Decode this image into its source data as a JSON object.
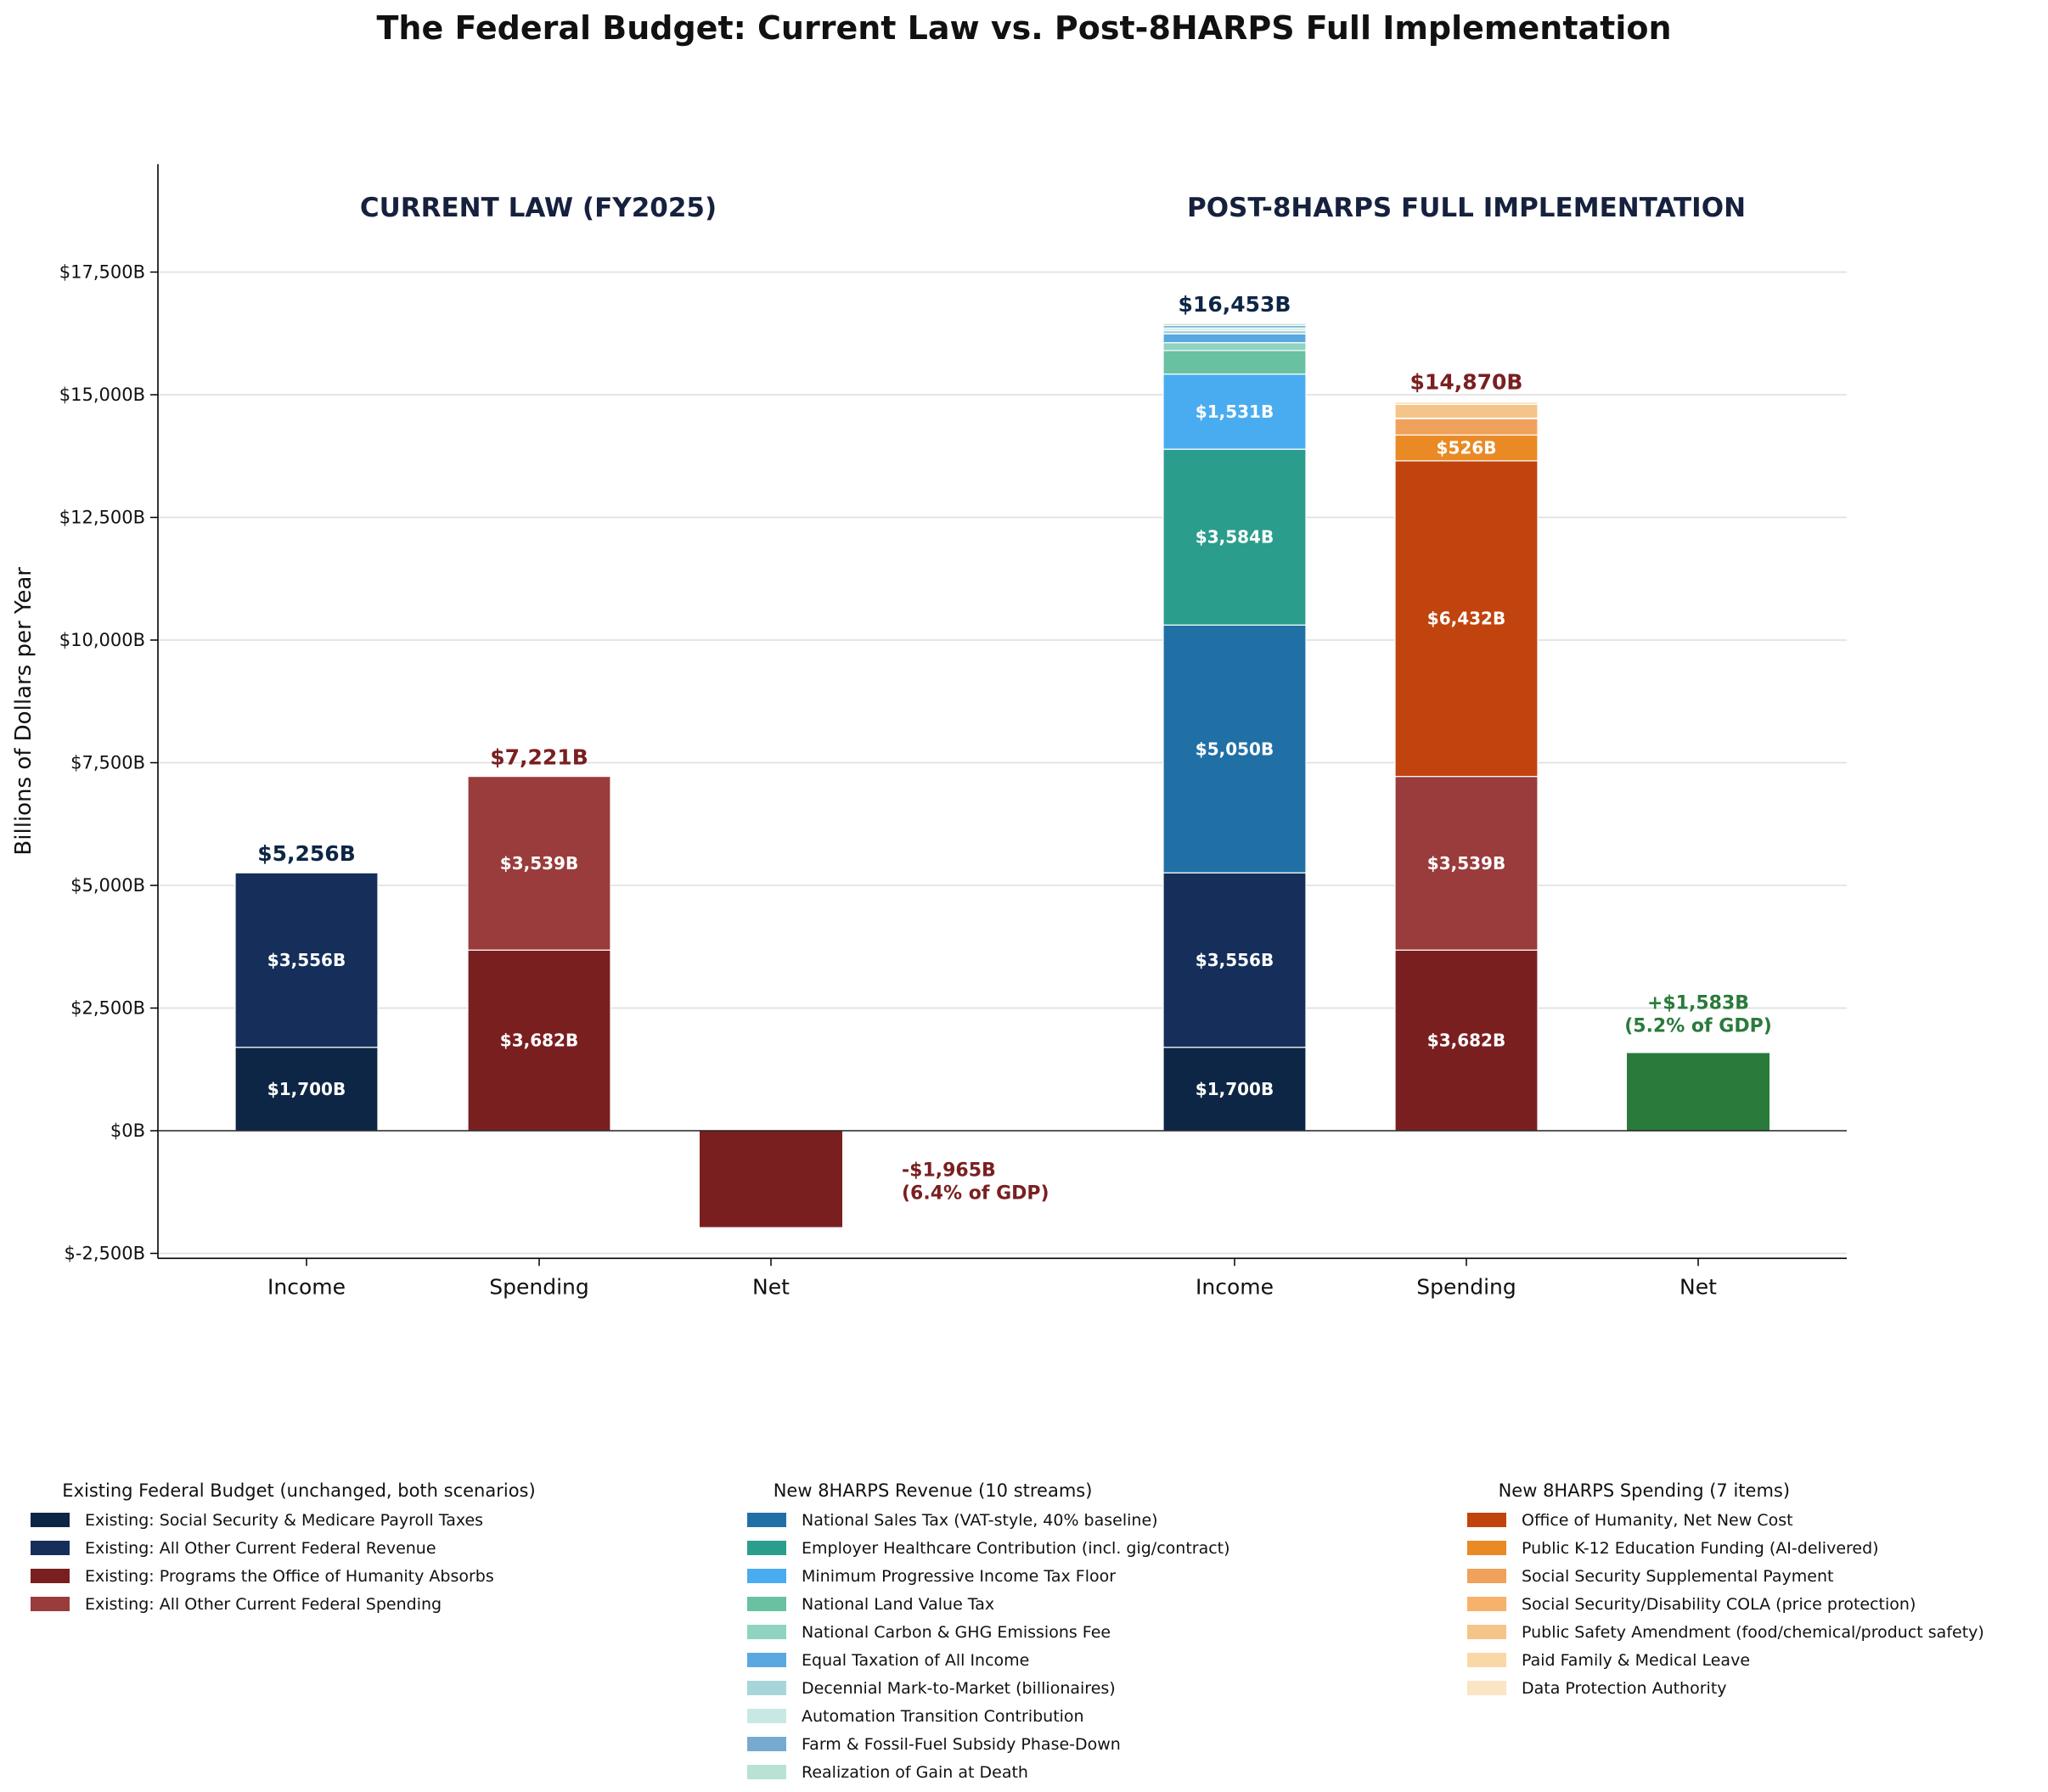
{
  "chart_data": {
    "type": "bar",
    "stacked": true,
    "title": "The Federal Budget: Current Law vs. Post-8HARPS Full Implementation",
    "ylabel": "Billions of Dollars per Year",
    "ylim": [
      -2600,
      19700
    ],
    "yticks": [
      -2500,
      0,
      2500,
      5000,
      7500,
      10000,
      12500,
      15000,
      17500
    ],
    "ytick_labels": [
      "$-2,500B",
      "$0B",
      "$2,500B",
      "$5,000B",
      "$7,500B",
      "$10,000B",
      "$12,500B",
      "$15,000B",
      "$17,500B"
    ],
    "grid": "y",
    "scenarios": [
      {
        "heading": "CURRENT LAW (FY2025)",
        "bars": [
          {
            "category": "Income",
            "total_label": "$5,256B",
            "segments": [
              {
                "series": "Existing: Social Security & Medicare Payroll Taxes",
                "value": 1700,
                "label": "$1,700B"
              },
              {
                "series": "Existing: All Other Current Federal Revenue",
                "value": 3556,
                "label": "$3,556B"
              }
            ]
          },
          {
            "category": "Spending",
            "total_label": "$7,221B",
            "segments": [
              {
                "series": "Existing: Programs the Office of Humanity Absorbs",
                "value": 3682,
                "label": "$3,682B"
              },
              {
                "series": "Existing: All Other Current Federal Spending",
                "value": 3539,
                "label": "$3,539B"
              }
            ]
          },
          {
            "category": "Net",
            "net": true,
            "value": -1965,
            "net_label": [
              "-$1,965B",
              "(6.4% of GDP)"
            ]
          }
        ]
      },
      {
        "heading": "POST-8HARPS FULL IMPLEMENTATION",
        "bars": [
          {
            "category": "Income",
            "total_label": "$16,453B",
            "segments": [
              {
                "series": "Existing: Social Security & Medicare Payroll Taxes",
                "value": 1700,
                "label": "$1,700B"
              },
              {
                "series": "Existing: All Other Current Federal Revenue",
                "value": 3556,
                "label": "$3,556B"
              },
              {
                "series": "National Sales Tax (VAT-style, 40% baseline)",
                "value": 5050,
                "label": "$5,050B"
              },
              {
                "series": "Employer Healthcare Contribution (incl. gig/contract)",
                "value": 3584,
                "label": "$3,584B"
              },
              {
                "series": "Minimum Progressive Income Tax Floor",
                "value": 1531,
                "label": "$1,531B"
              },
              {
                "series": "National Land Value Tax",
                "value": 480,
                "label": ""
              },
              {
                "series": "National Carbon & GHG Emissions Fee",
                "value": 160,
                "label": ""
              },
              {
                "series": "Equal Taxation of All Income",
                "value": 180,
                "label": ""
              },
              {
                "series": "Decennial Mark-to-Market (billionaires)",
                "value": 70,
                "label": ""
              },
              {
                "series": "Automation Transition Contribution",
                "value": 50,
                "label": ""
              },
              {
                "series": "Farm & Fossil-Fuel Subsidy Phase-Down",
                "value": 50,
                "label": ""
              },
              {
                "series": "Realization of Gain at Death",
                "value": 42,
                "label": ""
              }
            ]
          },
          {
            "category": "Spending",
            "total_label": "$14,870B",
            "segments": [
              {
                "series": "Existing: Programs the Office of Humanity Absorbs",
                "value": 3682,
                "label": "$3,682B"
              },
              {
                "series": "Existing: All Other Current Federal Spending",
                "value": 3539,
                "label": "$3,539B"
              },
              {
                "series": "Office of Humanity, Net New Cost",
                "value": 6432,
                "label": "$6,432B"
              },
              {
                "series": "Public K-12 Education Funding (AI-delivered)",
                "value": 526,
                "label": "$526B"
              },
              {
                "series": "Social Security Supplemental Payment",
                "value": 330,
                "label": ""
              },
              {
                "series": "Social Security/Disability COLA (price protection)",
                "value": 15,
                "label": ""
              },
              {
                "series": "Public Safety Amendment (food/chemical/product safety)",
                "value": 280,
                "label": ""
              },
              {
                "series": "Paid Family & Medical Leave",
                "value": 46,
                "label": ""
              },
              {
                "series": "Data Protection Authority",
                "value": 20,
                "label": ""
              }
            ]
          },
          {
            "category": "Net",
            "net": true,
            "value": 1583,
            "net_label": [
              "+$1,583B",
              "(5.2% of GDP)"
            ]
          }
        ]
      }
    ],
    "legend_groups": [
      {
        "title": "Existing Federal Budget (unchanged, both scenarios)",
        "items": [
          {
            "label": "Existing: Social Security & Medicare Payroll Taxes",
            "color": "#0d2645"
          },
          {
            "label": "Existing: All Other Current Federal Revenue",
            "color": "#152f5a"
          },
          {
            "label": "Existing: Programs the Office of Humanity Absorbs",
            "color": "#7a1f20"
          },
          {
            "label": "Existing: All Other Current Federal Spending",
            "color": "#9a3b3c"
          }
        ]
      },
      {
        "title": "New 8HARPS Revenue (10 streams)",
        "items": [
          {
            "label": "National Sales Tax (VAT-style, 40% baseline)",
            "color": "#2070a6"
          },
          {
            "label": "Employer Healthcare Contribution (incl. gig/contract)",
            "color": "#2a9d8c"
          },
          {
            "label": "Minimum Progressive Income Tax Floor",
            "color": "#4aacf0"
          },
          {
            "label": "National Land Value Tax",
            "color": "#69c1a1"
          },
          {
            "label": "National Carbon & GHG Emissions Fee",
            "color": "#8fd3c1"
          },
          {
            "label": "Equal Taxation of All Income",
            "color": "#59a8e0"
          },
          {
            "label": "Decennial Mark-to-Market (billionaires)",
            "color": "#a7d5da"
          },
          {
            "label": "Automation Transition Contribution",
            "color": "#c8e9e3"
          },
          {
            "label": "Farm & Fossil-Fuel Subsidy Phase-Down",
            "color": "#77aad1"
          },
          {
            "label": "Realization of Gain at Death",
            "color": "#b8e2d3"
          }
        ]
      },
      {
        "title": "New 8HARPS Spending (7 items)",
        "items": [
          {
            "label": "Office of Humanity, Net New Cost",
            "color": "#c1440e"
          },
          {
            "label": "Public K-12 Education Funding (AI-delivered)",
            "color": "#e98a25"
          },
          {
            "label": "Social Security Supplemental Payment",
            "color": "#f0a15b"
          },
          {
            "label": "Social Security/Disability COLA (price protection)",
            "color": "#f6b26b"
          },
          {
            "label": "Public Safety Amendment (food/chemical/product safety)",
            "color": "#f5c489"
          },
          {
            "label": "Paid Family & Medical Leave",
            "color": "#f9d8a8"
          },
          {
            "label": "Data Protection Authority",
            "color": "#fbe5c4"
          }
        ]
      }
    ],
    "colors": {
      "income_total": "#0d2645",
      "spending_total": "#7a1f20",
      "deficit": "#7a1f20",
      "surplus": "#2a7a3b",
      "heading": "#16213e"
    }
  }
}
